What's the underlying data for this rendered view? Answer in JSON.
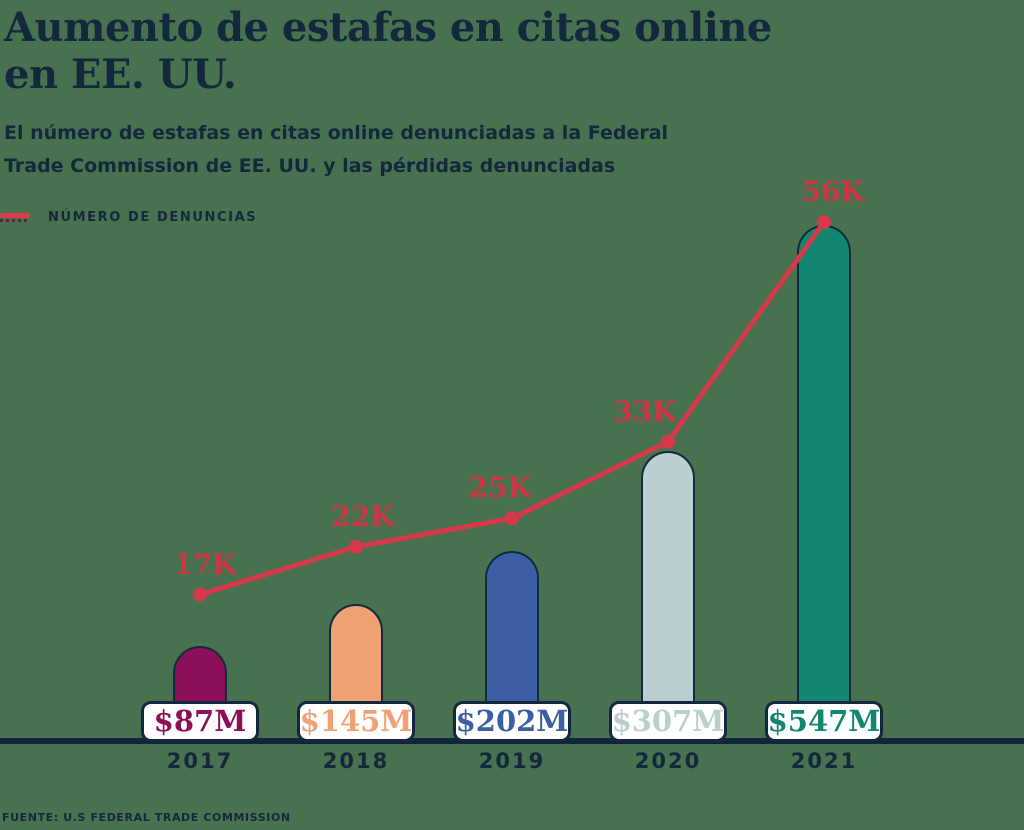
{
  "header": {
    "title_line1": "Aumento de estafas en citas online",
    "title_line2": "en EE. UU.",
    "subtitle_line1": "El número de estafas en citas online denunciadas a la Federal",
    "subtitle_line2": "Trade Commission de EE. UU. y las pérdidas denunciadas"
  },
  "legend": {
    "label": "NÚMERO DE DENUNCIAS"
  },
  "footer": {
    "source": "FUENTE: U.S FEDERAL TRADE COMMISSION"
  },
  "colors": {
    "background": "#48714F",
    "navy_text": "#13283C",
    "axis": "#10243A",
    "line_red": "#D6394A",
    "label_red": "#CD3644",
    "box_background": "#FFFFFF"
  },
  "chart_data": {
    "type": "bar",
    "title": "Aumento de estafas en citas online en EE. UU.",
    "subtitle": "El número de estafas en citas online denunciadas a la Federal Trade Commission de EE. UU. y las pérdidas denunciadas",
    "categories": [
      "2017",
      "2018",
      "2019",
      "2020",
      "2021"
    ],
    "series": [
      {
        "name": "NÚMERO DE DENUNCIAS",
        "type": "line",
        "unit": "reports (thousands)",
        "values": [
          17,
          22,
          25,
          33,
          56
        ],
        "labels": [
          "17K",
          "22K",
          "25K",
          "33K",
          "56K"
        ],
        "color": "#D6394A"
      },
      {
        "name": "Pérdidas denunciadas",
        "type": "bar",
        "unit": "USD millions",
        "values": [
          87,
          145,
          202,
          307,
          547
        ],
        "labels": [
          "$87M",
          "$145M",
          "$202M",
          "$307M",
          "$547M"
        ],
        "colors": [
          "#8B1058",
          "#F1A274",
          "#3C5EA3",
          "#BAD0D0",
          "#138670"
        ]
      }
    ],
    "xlabel": "",
    "ylabel": "",
    "grid": false,
    "y_axis_visible": false,
    "legend_position": "top-left",
    "source": "FUENTE: U.S FEDERAL TRADE COMMISSION"
  }
}
